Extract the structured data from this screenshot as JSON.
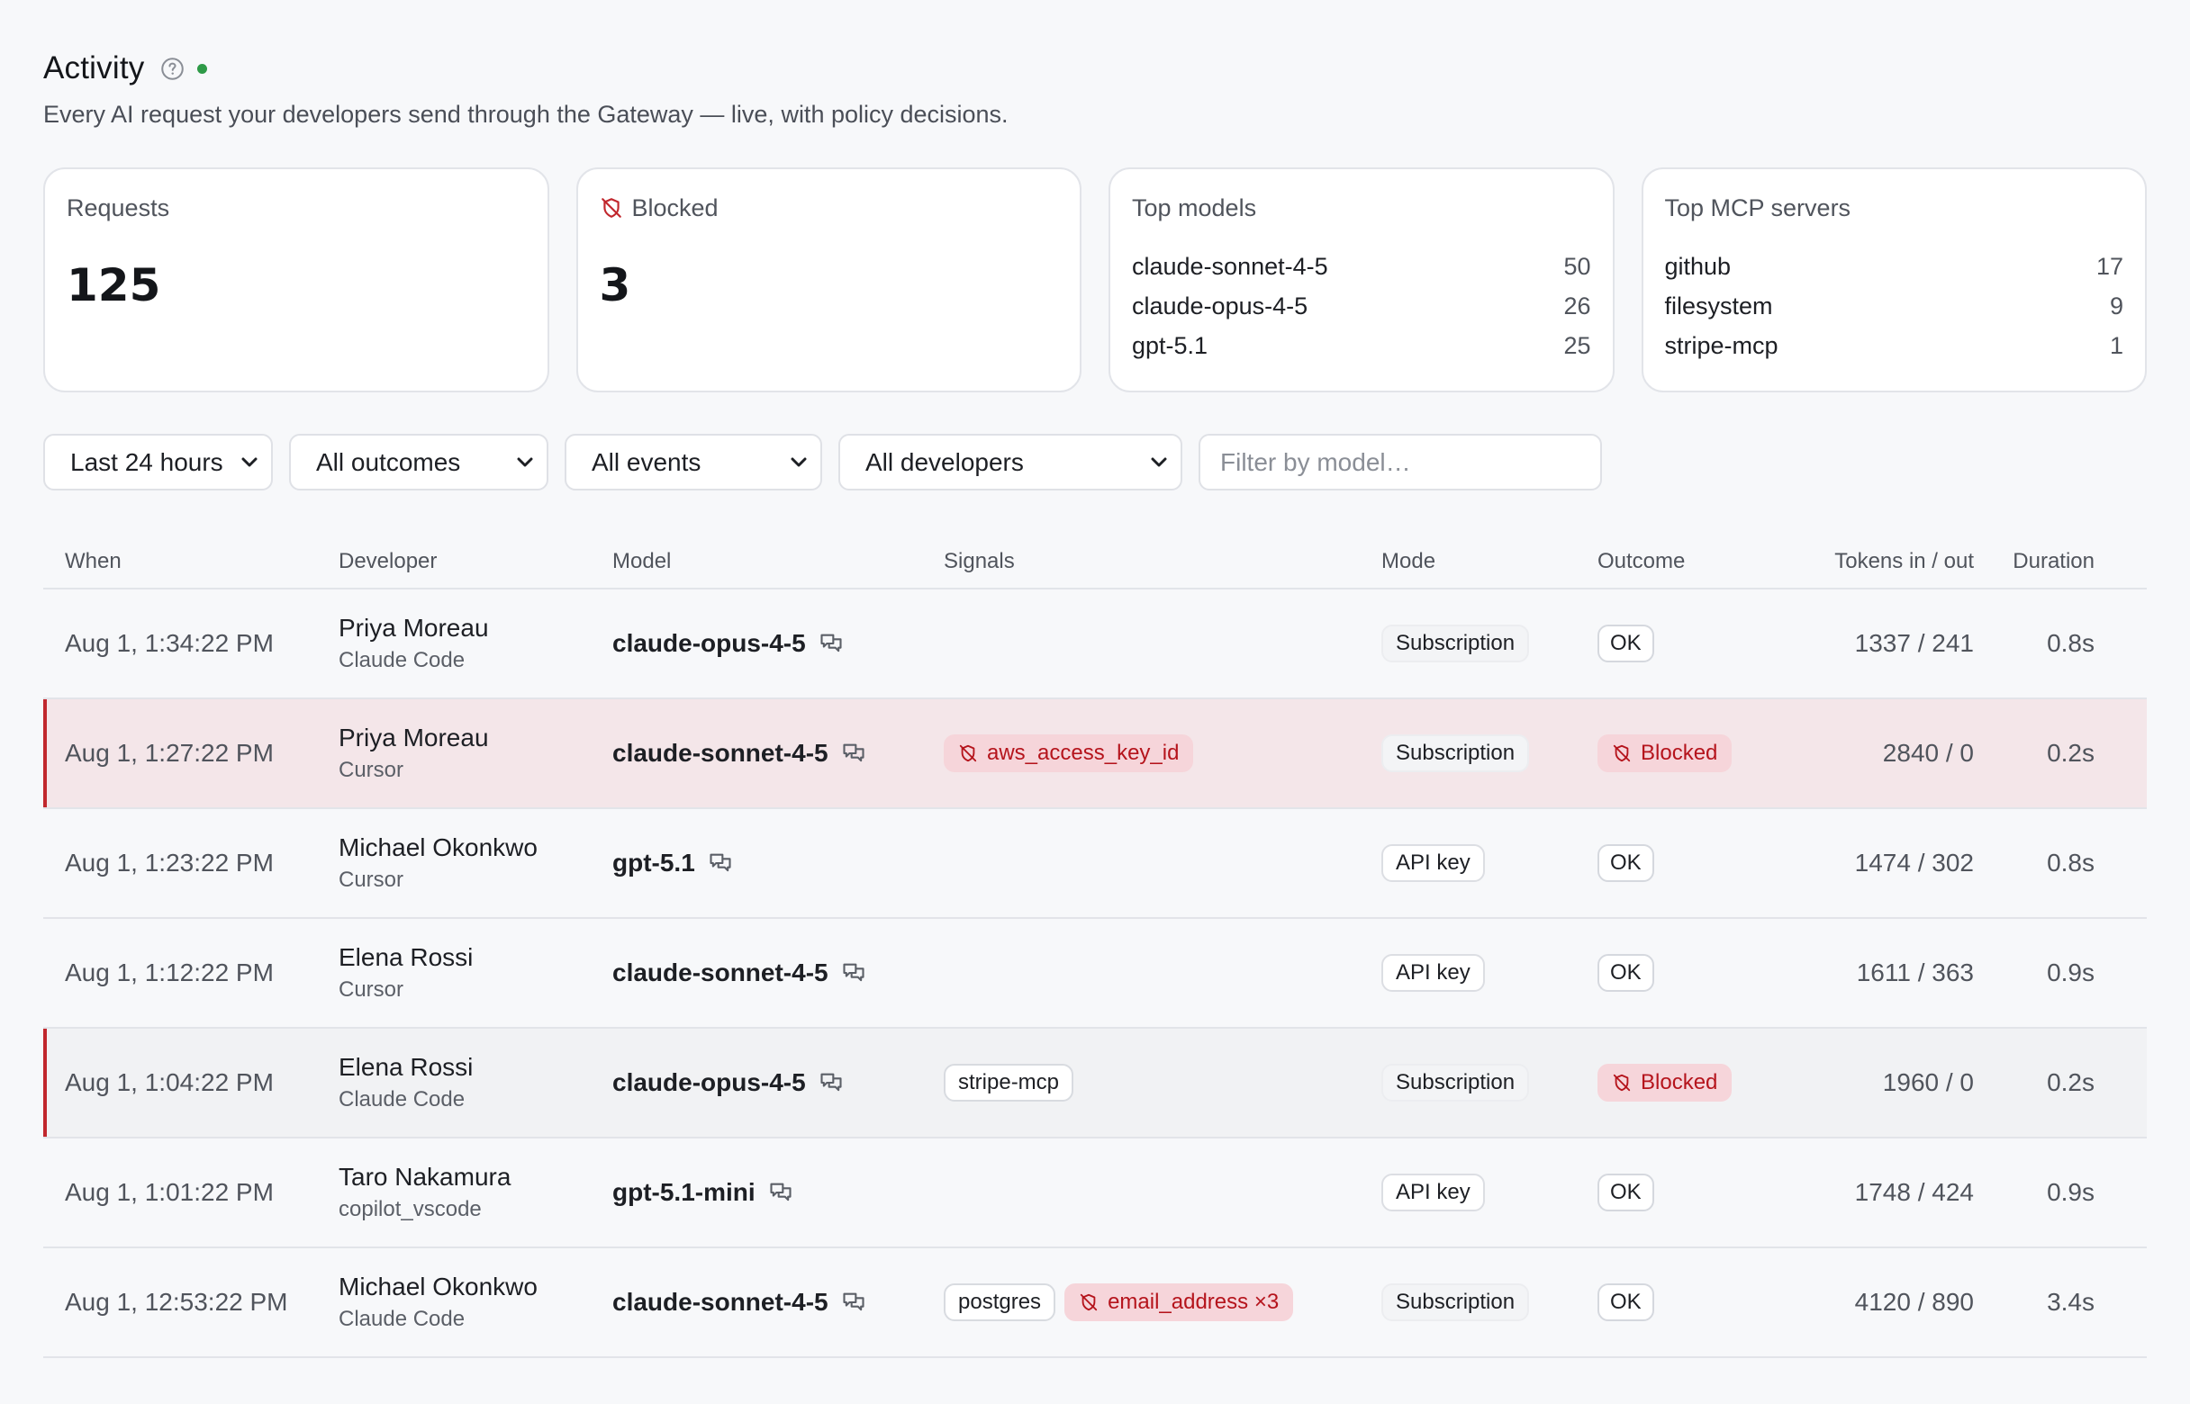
{
  "header": {
    "title": "Activity",
    "subtitle": "Every AI request your developers send through the Gateway — live, with policy decisions."
  },
  "cards": {
    "requests": {
      "label": "Requests",
      "value": "125"
    },
    "blocked": {
      "label": "Blocked",
      "value": "3"
    },
    "top_models": {
      "label": "Top models",
      "items": [
        {
          "name": "claude-sonnet-4-5",
          "count": "50"
        },
        {
          "name": "claude-opus-4-5",
          "count": "26"
        },
        {
          "name": "gpt-5.1",
          "count": "25"
        }
      ]
    },
    "top_mcp": {
      "label": "Top MCP servers",
      "items": [
        {
          "name": "github",
          "count": "17"
        },
        {
          "name": "filesystem",
          "count": "9"
        },
        {
          "name": "stripe-mcp",
          "count": "1"
        }
      ]
    }
  },
  "filters": {
    "time": "Last 24 hours",
    "outcome": "All outcomes",
    "events": "All events",
    "developers": "All developers",
    "model_placeholder": "Filter by model…"
  },
  "table": {
    "headers": {
      "when": "When",
      "developer": "Developer",
      "model": "Model",
      "signals": "Signals",
      "mode": "Mode",
      "outcome": "Outcome",
      "tokens": "Tokens in / out",
      "duration": "Duration"
    },
    "rows": [
      {
        "when": "Aug 1, 1:34:22 PM",
        "dev": "Priya Moreau",
        "tool": "Claude Code",
        "model": "claude-opus-4-5",
        "mode": "Subscription",
        "outcome": "OK",
        "tokens": "1337 / 241",
        "duration": "0.8s"
      },
      {
        "when": "Aug 1, 1:27:22 PM",
        "dev": "Priya Moreau",
        "tool": "Cursor",
        "model": "claude-sonnet-4-5",
        "signal": "aws_access_key_id",
        "mode": "Subscription",
        "outcome": "Blocked",
        "tokens": "2840 / 0",
        "duration": "0.2s"
      },
      {
        "when": "Aug 1, 1:23:22 PM",
        "dev": "Michael Okonkwo",
        "tool": "Cursor",
        "model": "gpt-5.1",
        "mode": "API key",
        "outcome": "OK",
        "tokens": "1474 / 302",
        "duration": "0.8s"
      },
      {
        "when": "Aug 1, 1:12:22 PM",
        "dev": "Elena Rossi",
        "tool": "Cursor",
        "model": "claude-sonnet-4-5",
        "mode": "API key",
        "outcome": "OK",
        "tokens": "1611 / 363",
        "duration": "0.9s"
      },
      {
        "when": "Aug 1, 1:04:22 PM",
        "dev": "Elena Rossi",
        "tool": "Claude Code",
        "model": "claude-opus-4-5",
        "signal": "stripe-mcp",
        "mode": "Subscription",
        "outcome": "Blocked",
        "tokens": "1960 / 0",
        "duration": "0.2s"
      },
      {
        "when": "Aug 1, 1:01:22 PM",
        "dev": "Taro Nakamura",
        "tool": "copilot_vscode",
        "model": "gpt-5.1-mini",
        "mode": "API key",
        "outcome": "OK",
        "tokens": "1748 / 424",
        "duration": "0.9s"
      },
      {
        "when": "Aug 1, 12:53:22 PM",
        "dev": "Michael Okonkwo",
        "tool": "Claude Code",
        "model": "claude-sonnet-4-5",
        "signal": "postgres",
        "signal2": "email_address ×3",
        "mode": "Subscription",
        "outcome": "OK",
        "tokens": "4120 / 890",
        "duration": "3.4s"
      }
    ]
  },
  "colors": {
    "danger": "#b5141c",
    "danger_bg": "#f6d5da",
    "live": "#2e9a47"
  }
}
